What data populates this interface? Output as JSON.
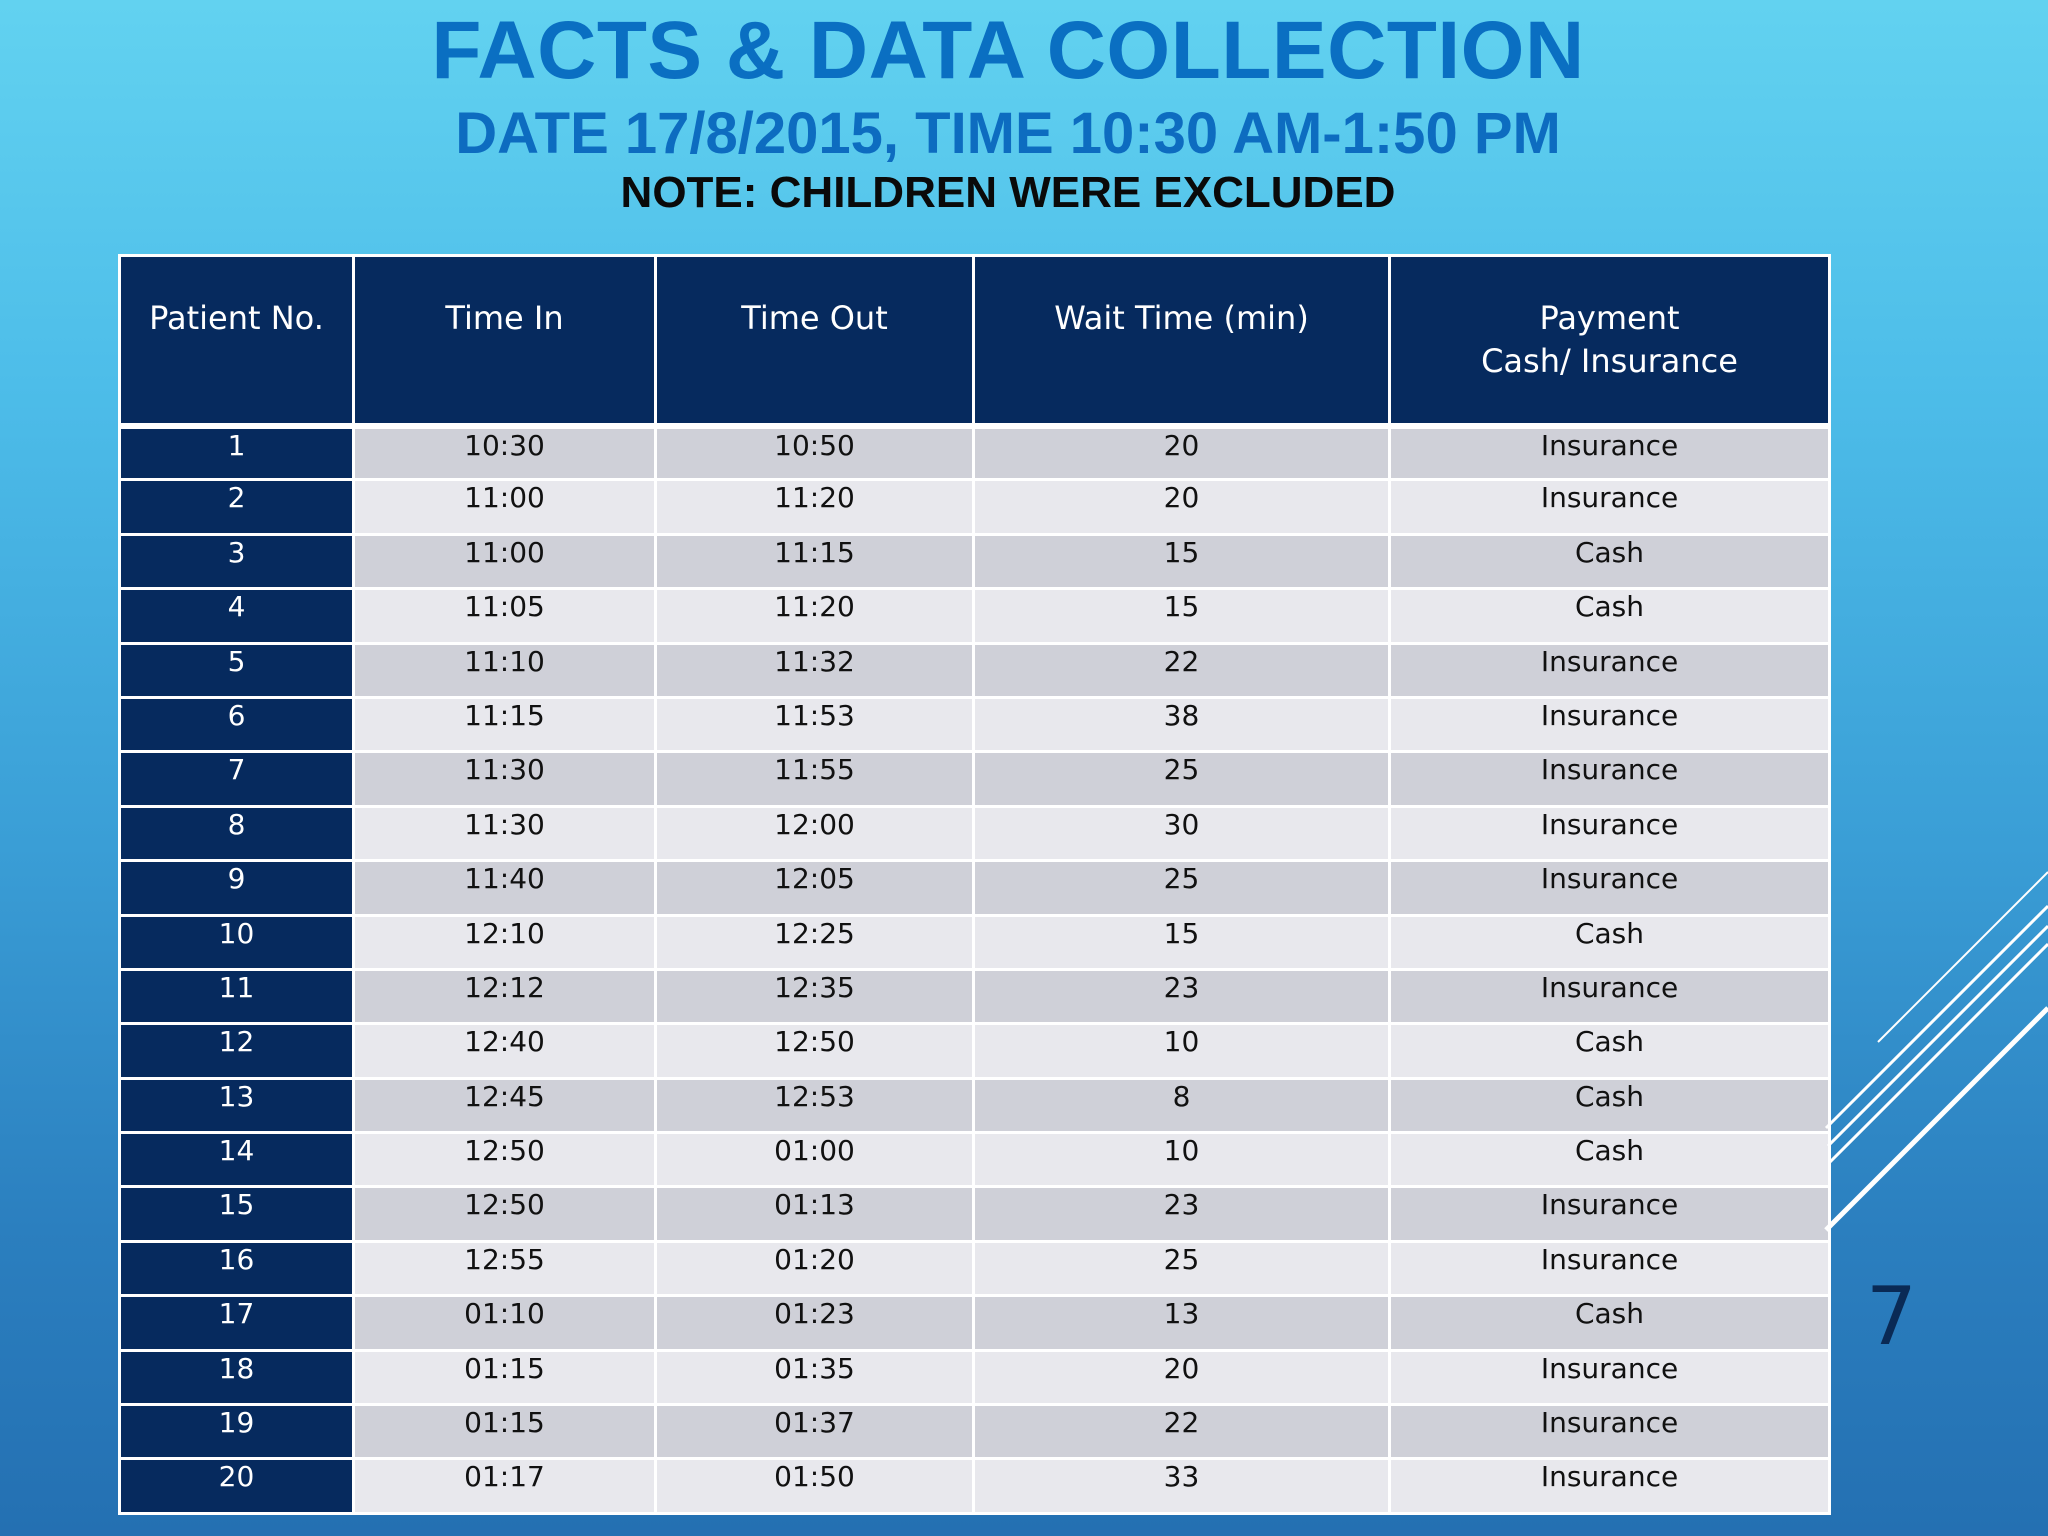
{
  "header": {
    "title": "FACTS & DATA COLLECTION",
    "subtitle": "DATE 17/8/2015, TIME 10:30 AM-1:50 PM",
    "note": "NOTE: CHILDREN WERE EXCLUDED"
  },
  "table": {
    "columns": [
      "Patient No.",
      "Time In",
      "Time Out",
      "Wait Time (min)",
      "Payment\nCash/ Insurance"
    ],
    "rows": [
      [
        "1",
        "10:30",
        "10:50",
        "20",
        "Insurance"
      ],
      [
        "2",
        "11:00",
        "11:20",
        "20",
        "Insurance"
      ],
      [
        "3",
        "11:00",
        "11:15",
        "15",
        "Cash"
      ],
      [
        "4",
        "11:05",
        "11:20",
        "15",
        "Cash"
      ],
      [
        "5",
        "11:10",
        "11:32",
        "22",
        "Insurance"
      ],
      [
        "6",
        "11:15",
        "11:53",
        "38",
        "Insurance"
      ],
      [
        "7",
        "11:30",
        "11:55",
        "25",
        "Insurance"
      ],
      [
        "8",
        "11:30",
        "12:00",
        "30",
        "Insurance"
      ],
      [
        "9",
        "11:40",
        "12:05",
        "25",
        "Insurance"
      ],
      [
        "10",
        "12:10",
        "12:25",
        "15",
        "Cash"
      ],
      [
        "11",
        "12:12",
        "12:35",
        "23",
        "Insurance"
      ],
      [
        "12",
        "12:40",
        "12:50",
        "10",
        "Cash"
      ],
      [
        "13",
        "12:45",
        "12:53",
        "8",
        "Cash"
      ],
      [
        "14",
        "12:50",
        "01:00",
        "10",
        "Cash"
      ],
      [
        "15",
        "12:50",
        "01:13",
        "23",
        "Insurance"
      ],
      [
        "16",
        "12:55",
        "01:20",
        "25",
        "Insurance"
      ],
      [
        "17",
        "01:10",
        "01:23",
        "13",
        "Cash"
      ],
      [
        "18",
        "01:15",
        "01:35",
        "20",
        "Insurance"
      ],
      [
        "19",
        "01:15",
        "01:37",
        "22",
        "Insurance"
      ],
      [
        "20",
        "01:17",
        "01:50",
        "33",
        "Insurance"
      ]
    ]
  },
  "page_number": "7",
  "colors": {
    "header_fill": "#062a5e",
    "title_blue": "#0a6fc2",
    "row_dark": "#cfd0d8",
    "row_light": "#e8e8ed"
  }
}
